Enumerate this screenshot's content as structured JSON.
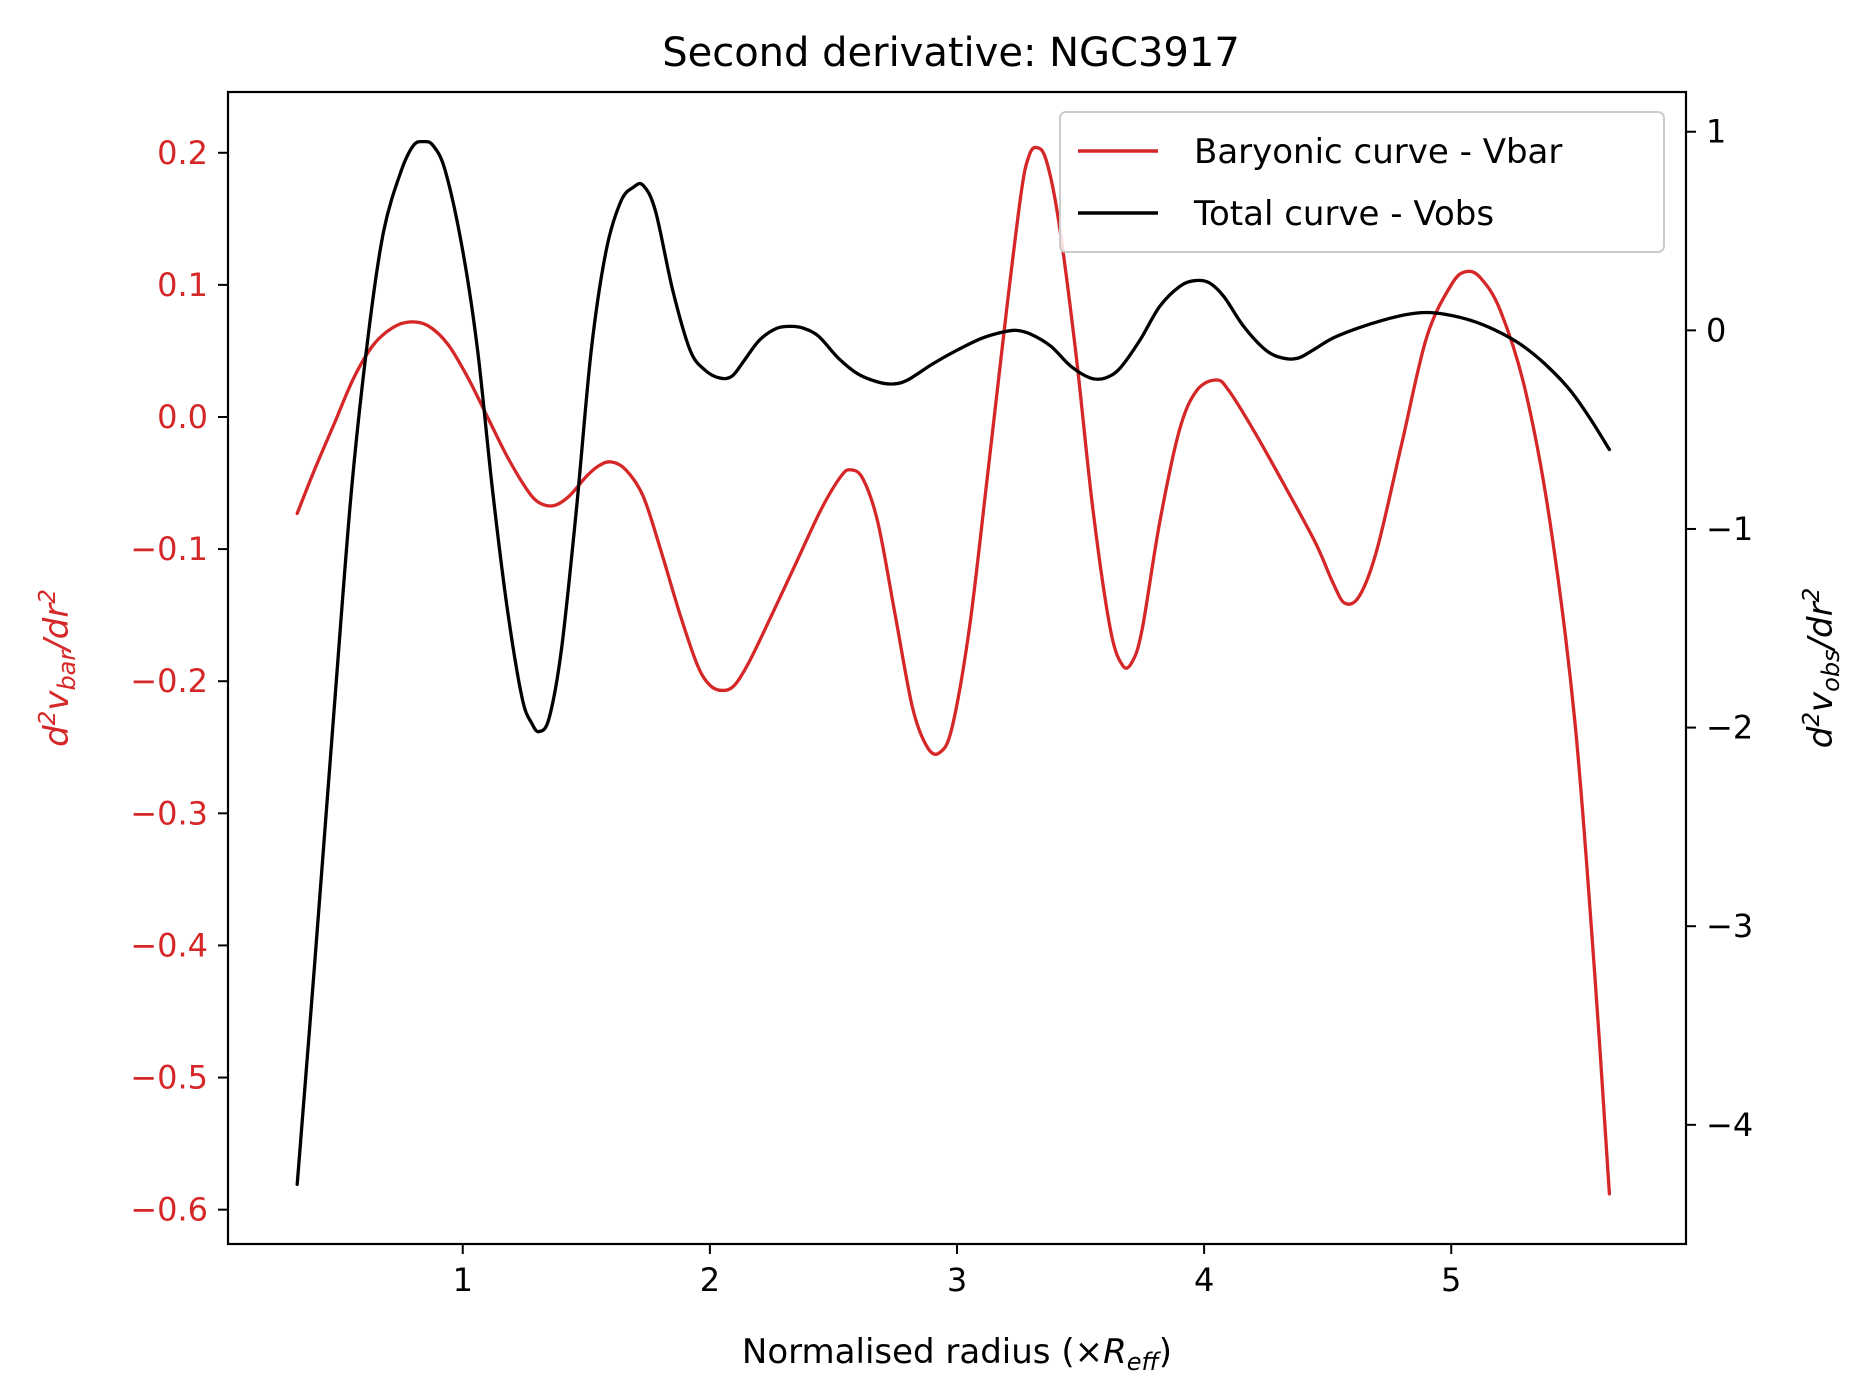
{
  "chart_data": {
    "type": "line",
    "title": "Second derivative: NGC3917",
    "xlabel": {
      "main": "Normalised radius (×",
      "var": "R",
      "sub": "eff",
      "close": ")"
    },
    "ylabel_left": {
      "d": "d",
      "exp": "2",
      "v": "v",
      "sub": "bar",
      "slash": "/dr",
      "exp2": "2"
    },
    "ylabel_right": {
      "d": "d",
      "exp": "2",
      "v": "v",
      "sub": "obs",
      "slash": "/dr",
      "exp2": "2"
    },
    "xlim": [
      0.05,
      5.95
    ],
    "ylim_left": [
      -0.626,
      0.246
    ],
    "ylim_right": [
      -4.6,
      1.2
    ],
    "x_ticks": [
      1,
      2,
      3,
      4,
      5
    ],
    "x_tick_labels": [
      "1",
      "2",
      "3",
      "4",
      "5"
    ],
    "y_left_ticks": [
      0.2,
      0.1,
      0.0,
      -0.1,
      -0.2,
      -0.3,
      -0.4,
      -0.5,
      -0.6
    ],
    "y_left_tick_labels": [
      "0.2",
      "0.1",
      "0.0",
      "−0.1",
      "−0.2",
      "−0.3",
      "−0.4",
      "−0.5",
      "−0.6"
    ],
    "y_right_ticks": [
      1,
      0,
      -1,
      -2,
      -3,
      -4
    ],
    "y_right_tick_labels": [
      "1",
      "0",
      "−1",
      "−2",
      "−3",
      "−4"
    ],
    "legend_position": "top-right",
    "grid": false,
    "colors": {
      "vbar": "#d62728",
      "vobs": "#000000"
    },
    "series": [
      {
        "name": "Baryonic curve - Vbar",
        "axis": "left",
        "points": [
          [
            0.33,
            -0.073
          ],
          [
            0.4,
            -0.04
          ],
          [
            0.48,
            -0.005
          ],
          [
            0.56,
            0.03
          ],
          [
            0.64,
            0.055
          ],
          [
            0.72,
            0.068
          ],
          [
            0.79,
            0.072
          ],
          [
            0.86,
            0.069
          ],
          [
            0.94,
            0.055
          ],
          [
            1.02,
            0.03
          ],
          [
            1.1,
            0.0
          ],
          [
            1.18,
            -0.03
          ],
          [
            1.26,
            -0.055
          ],
          [
            1.31,
            -0.065
          ],
          [
            1.37,
            -0.067
          ],
          [
            1.43,
            -0.06
          ],
          [
            1.5,
            -0.045
          ],
          [
            1.55,
            -0.037
          ],
          [
            1.6,
            -0.034
          ],
          [
            1.66,
            -0.04
          ],
          [
            1.73,
            -0.06
          ],
          [
            1.8,
            -0.1
          ],
          [
            1.88,
            -0.15
          ],
          [
            1.95,
            -0.188
          ],
          [
            2.0,
            -0.203
          ],
          [
            2.05,
            -0.207
          ],
          [
            2.1,
            -0.203
          ],
          [
            2.16,
            -0.185
          ],
          [
            2.25,
            -0.15
          ],
          [
            2.35,
            -0.11
          ],
          [
            2.45,
            -0.07
          ],
          [
            2.53,
            -0.045
          ],
          [
            2.57,
            -0.04
          ],
          [
            2.62,
            -0.047
          ],
          [
            2.68,
            -0.08
          ],
          [
            2.75,
            -0.15
          ],
          [
            2.82,
            -0.22
          ],
          [
            2.88,
            -0.25
          ],
          [
            2.93,
            -0.254
          ],
          [
            2.98,
            -0.235
          ],
          [
            3.05,
            -0.16
          ],
          [
            3.12,
            -0.05
          ],
          [
            3.2,
            0.08
          ],
          [
            3.26,
            0.17
          ],
          [
            3.29,
            0.197
          ],
          [
            3.32,
            0.204
          ],
          [
            3.36,
            0.195
          ],
          [
            3.41,
            0.15
          ],
          [
            3.48,
            0.05
          ],
          [
            3.55,
            -0.07
          ],
          [
            3.62,
            -0.16
          ],
          [
            3.67,
            -0.188
          ],
          [
            3.71,
            -0.185
          ],
          [
            3.75,
            -0.16
          ],
          [
            3.82,
            -0.08
          ],
          [
            3.9,
            -0.01
          ],
          [
            3.97,
            0.02
          ],
          [
            4.05,
            0.028
          ],
          [
            4.1,
            0.02
          ],
          [
            4.2,
            -0.01
          ],
          [
            4.32,
            -0.05
          ],
          [
            4.45,
            -0.095
          ],
          [
            4.52,
            -0.125
          ],
          [
            4.57,
            -0.141
          ],
          [
            4.63,
            -0.135
          ],
          [
            4.7,
            -0.1
          ],
          [
            4.8,
            -0.02
          ],
          [
            4.9,
            0.06
          ],
          [
            5.0,
            0.1
          ],
          [
            5.06,
            0.11
          ],
          [
            5.12,
            0.105
          ],
          [
            5.2,
            0.08
          ],
          [
            5.3,
            0.02
          ],
          [
            5.4,
            -0.08
          ],
          [
            5.5,
            -0.23
          ],
          [
            5.58,
            -0.42
          ],
          [
            5.64,
            -0.588
          ]
        ]
      },
      {
        "name": "Total curve - Vobs",
        "axis": "right",
        "points": [
          [
            0.33,
            -4.3
          ],
          [
            0.4,
            -3.2
          ],
          [
            0.48,
            -1.9
          ],
          [
            0.55,
            -0.8
          ],
          [
            0.62,
            0.0
          ],
          [
            0.68,
            0.5
          ],
          [
            0.75,
            0.8
          ],
          [
            0.8,
            0.93
          ],
          [
            0.84,
            0.95
          ],
          [
            0.88,
            0.93
          ],
          [
            0.93,
            0.8
          ],
          [
            1.0,
            0.4
          ],
          [
            1.06,
            -0.1
          ],
          [
            1.12,
            -0.8
          ],
          [
            1.18,
            -1.4
          ],
          [
            1.24,
            -1.85
          ],
          [
            1.28,
            -1.98
          ],
          [
            1.31,
            -2.02
          ],
          [
            1.35,
            -1.95
          ],
          [
            1.4,
            -1.6
          ],
          [
            1.46,
            -0.9
          ],
          [
            1.52,
            -0.1
          ],
          [
            1.58,
            0.4
          ],
          [
            1.64,
            0.65
          ],
          [
            1.69,
            0.72
          ],
          [
            1.73,
            0.73
          ],
          [
            1.78,
            0.6
          ],
          [
            1.85,
            0.2
          ],
          [
            1.92,
            -0.1
          ],
          [
            1.98,
            -0.2
          ],
          [
            2.04,
            -0.24
          ],
          [
            2.09,
            -0.23
          ],
          [
            2.14,
            -0.15
          ],
          [
            2.2,
            -0.05
          ],
          [
            2.27,
            0.01
          ],
          [
            2.33,
            0.02
          ],
          [
            2.38,
            0.01
          ],
          [
            2.44,
            -0.03
          ],
          [
            2.52,
            -0.14
          ],
          [
            2.6,
            -0.22
          ],
          [
            2.68,
            -0.26
          ],
          [
            2.74,
            -0.27
          ],
          [
            2.8,
            -0.25
          ],
          [
            2.9,
            -0.17
          ],
          [
            3.0,
            -0.1
          ],
          [
            3.1,
            -0.04
          ],
          [
            3.18,
            -0.01
          ],
          [
            3.24,
            0.0
          ],
          [
            3.3,
            -0.02
          ],
          [
            3.38,
            -0.08
          ],
          [
            3.46,
            -0.18
          ],
          [
            3.54,
            -0.24
          ],
          [
            3.6,
            -0.24
          ],
          [
            3.66,
            -0.19
          ],
          [
            3.74,
            -0.05
          ],
          [
            3.82,
            0.12
          ],
          [
            3.9,
            0.22
          ],
          [
            3.96,
            0.25
          ],
          [
            4.02,
            0.24
          ],
          [
            4.08,
            0.17
          ],
          [
            4.16,
            0.02
          ],
          [
            4.25,
            -0.1
          ],
          [
            4.32,
            -0.14
          ],
          [
            4.38,
            -0.14
          ],
          [
            4.44,
            -0.1
          ],
          [
            4.52,
            -0.04
          ],
          [
            4.62,
            0.01
          ],
          [
            4.72,
            0.05
          ],
          [
            4.82,
            0.08
          ],
          [
            4.9,
            0.09
          ],
          [
            4.98,
            0.08
          ],
          [
            5.08,
            0.05
          ],
          [
            5.18,
            0.0
          ],
          [
            5.28,
            -0.07
          ],
          [
            5.38,
            -0.17
          ],
          [
            5.48,
            -0.3
          ],
          [
            5.56,
            -0.44
          ],
          [
            5.64,
            -0.6
          ]
        ]
      }
    ]
  }
}
